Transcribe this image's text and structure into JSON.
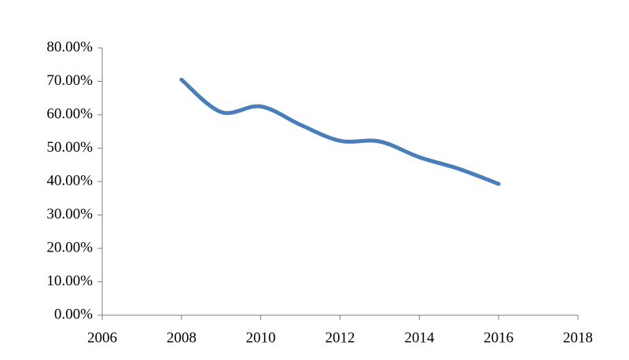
{
  "chart_data": {
    "type": "line",
    "x": [
      2008,
      2009,
      2010,
      2011,
      2012,
      2013,
      2014,
      2015,
      2016
    ],
    "series": [
      {
        "color": "#4a7ebb",
        "values": [
          70.5,
          60.8,
          62.5,
          57.0,
          52.2,
          52.0,
          47.3,
          43.8,
          39.3
        ]
      }
    ],
    "xlim": [
      2006,
      2018
    ],
    "xticks": [
      2006,
      2008,
      2010,
      2012,
      2014,
      2016,
      2018
    ],
    "ylim": [
      0,
      80
    ],
    "yticks": [
      {
        "value": 0,
        "label": "0.00%"
      },
      {
        "value": 10,
        "label": "10.00%"
      },
      {
        "value": 20,
        "label": "20.00%"
      },
      {
        "value": 30,
        "label": "30.00%"
      },
      {
        "value": 40,
        "label": "40.00%"
      },
      {
        "value": 50,
        "label": "50.00%"
      },
      {
        "value": 60,
        "label": "60.00%"
      },
      {
        "value": 70,
        "label": "70.00%"
      },
      {
        "value": 80,
        "label": "80.00%"
      }
    ],
    "smooth": true,
    "grid": false
  }
}
